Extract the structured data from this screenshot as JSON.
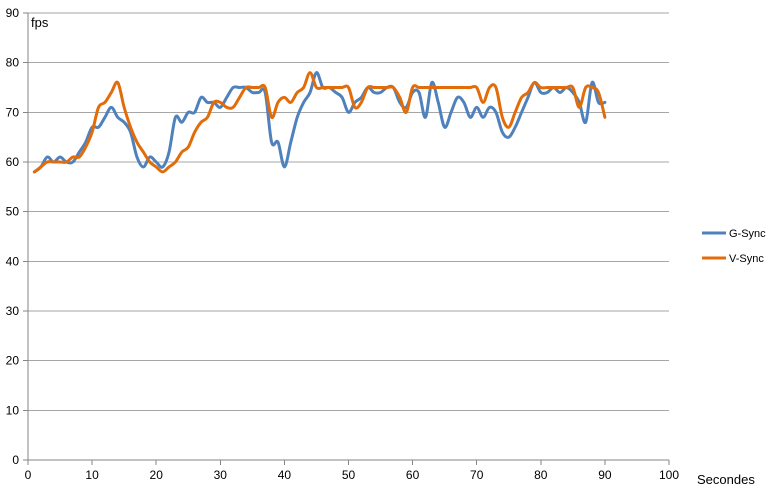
{
  "chart_data": {
    "type": "line",
    "title": "",
    "xlabel": "Secondes",
    "ylabel": "fps",
    "xlim": [
      0,
      100
    ],
    "ylim": [
      0,
      90
    ],
    "x_ticks": [
      0,
      10,
      20,
      30,
      40,
      50,
      60,
      70,
      80,
      90,
      100
    ],
    "y_ticks": [
      0,
      10,
      20,
      30,
      40,
      50,
      60,
      70,
      80,
      90
    ],
    "grid": "horizontal",
    "legend_position": "right",
    "x": [
      1,
      2,
      3,
      4,
      5,
      6,
      7,
      8,
      9,
      10,
      11,
      12,
      13,
      14,
      15,
      16,
      17,
      18,
      19,
      20,
      21,
      22,
      23,
      24,
      25,
      26,
      27,
      28,
      29,
      30,
      31,
      32,
      33,
      34,
      35,
      36,
      37,
      38,
      39,
      40,
      41,
      42,
      43,
      44,
      45,
      46,
      47,
      48,
      49,
      50,
      51,
      52,
      53,
      54,
      55,
      56,
      57,
      58,
      59,
      60,
      61,
      62,
      63,
      64,
      65,
      66,
      67,
      68,
      69,
      70,
      71,
      72,
      73,
      74,
      75,
      76,
      77,
      78,
      79,
      80,
      81,
      82,
      83,
      84,
      85,
      86,
      87,
      88,
      89,
      90
    ],
    "series": [
      {
        "name": "G-Sync",
        "color": "#4F81BD",
        "values": [
          58,
          59,
          61,
          60,
          61,
          60,
          60,
          62,
          64,
          67,
          67,
          69,
          71,
          69,
          68,
          66,
          61,
          59,
          61,
          60,
          59,
          62,
          69,
          68,
          70,
          70,
          73,
          72,
          72,
          71,
          73,
          75,
          75,
          75,
          74,
          74,
          74,
          64,
          64,
          59,
          64,
          69,
          72,
          74,
          78,
          75,
          75,
          74,
          73,
          70,
          72,
          73,
          75,
          74,
          74,
          75,
          75,
          72,
          71,
          74,
          74,
          69,
          76,
          72,
          67,
          70,
          73,
          72,
          69,
          71,
          69,
          71,
          70,
          66,
          65,
          67,
          70,
          73,
          76,
          74,
          74,
          75,
          74,
          75,
          74,
          72,
          68,
          76,
          72,
          72
        ]
      },
      {
        "name": "V-Sync",
        "color": "#E36C0A",
        "values": [
          58,
          59,
          60,
          60,
          60,
          60,
          61,
          61,
          63,
          66,
          71,
          72,
          74,
          76,
          71,
          67,
          64,
          62,
          60,
          59,
          58,
          59,
          60,
          62,
          63,
          66,
          68,
          69,
          72,
          72,
          71,
          71,
          73,
          75,
          75,
          75,
          75,
          69,
          72,
          73,
          72,
          74,
          75,
          78,
          75,
          75,
          75,
          75,
          75,
          75,
          71,
          72,
          75,
          75,
          75,
          75,
          75,
          73,
          70,
          75,
          75,
          75,
          75,
          75,
          75,
          75,
          75,
          75,
          75,
          75,
          72,
          75,
          75,
          69,
          67,
          70,
          73,
          74,
          76,
          75,
          75,
          75,
          75,
          75,
          75,
          71,
          75,
          75,
          74,
          69
        ]
      }
    ]
  }
}
